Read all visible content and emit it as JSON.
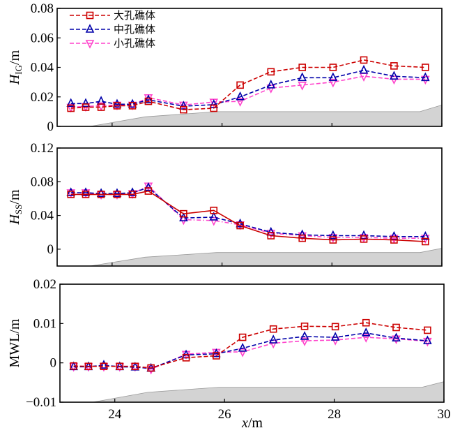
{
  "chart_data": {
    "type": "line",
    "xlabel": "x/m",
    "xlim": [
      23,
      30
    ],
    "xticks": [
      24,
      26,
      28,
      30
    ],
    "x": [
      23.25,
      23.52,
      23.8,
      24.09,
      24.37,
      24.66,
      25.3,
      25.85,
      26.33,
      26.89,
      27.46,
      28.02,
      28.58,
      29.13,
      29.7
    ],
    "legend": {
      "placement": "top-left",
      "entries": [
        "大孔礁体",
        "中孔礁体",
        "小孔礁体"
      ]
    },
    "panels": [
      {
        "id": "hig",
        "ylabel_main": "H",
        "ylabel_sub": "IG",
        "ylabel_unit": "/m",
        "ylim": [
          0,
          0.08
        ],
        "yticks": [
          0,
          0.02,
          0.04,
          0.06,
          0.08
        ],
        "ytick_labels": [
          "0",
          "0.02",
          "0.04",
          "0.06",
          "0.08"
        ],
        "show_legend": true,
        "terrain": [
          [
            23.6,
            0
          ],
          [
            24.6,
            0.0065
          ],
          [
            25.9,
            0.01
          ],
          [
            29.6,
            0.01
          ],
          [
            30,
            0.0145
          ]
        ],
        "series": [
          {
            "name": "大孔礁体",
            "color": "#cc0000",
            "marker": "square",
            "dash": "dashed",
            "values": [
              0.0123,
              0.013,
              0.013,
              0.014,
              0.014,
              0.017,
              0.0113,
              0.0123,
              0.028,
              0.037,
              0.04,
              0.04,
              0.045,
              0.041,
              0.04
            ]
          },
          {
            "name": "中孔礁体",
            "color": "#0000aa",
            "marker": "triangle-up",
            "dash": "dashed",
            "values": [
              0.0155,
              0.0155,
              0.017,
              0.015,
              0.015,
              0.018,
              0.0137,
              0.0147,
              0.02,
              0.028,
              0.033,
              0.033,
              0.038,
              0.034,
              0.033
            ]
          },
          {
            "name": "小孔礁体",
            "color": "#ff44cc",
            "marker": "triangle-down",
            "dash": "dashed",
            "values": [
              0.013,
              0.0135,
              0.014,
              0.0145,
              0.0145,
              0.0195,
              0.0145,
              0.0165,
              0.017,
              0.026,
              0.028,
              0.03,
              0.034,
              0.032,
              0.032
            ]
          }
        ]
      },
      {
        "id": "hss",
        "ylabel_main": "H",
        "ylabel_sub": "SS",
        "ylabel_unit": "/m",
        "ylim": [
          -0.02,
          0.12
        ],
        "yticks": [
          0,
          0.04,
          0.08,
          0.12
        ],
        "ytick_labels": [
          "0",
          "0.04",
          "0.08",
          "0.12"
        ],
        "show_legend": false,
        "terrain": [
          [
            23.6,
            -0.02
          ],
          [
            24.6,
            -0.0095
          ],
          [
            25.9,
            -0.004
          ],
          [
            29.6,
            -0.004
          ],
          [
            30,
            0.001
          ]
        ],
        "series": [
          {
            "name": "大孔礁体",
            "color": "#cc0000",
            "marker": "square",
            "dash": "solid",
            "values": [
              0.065,
              0.065,
              0.065,
              0.065,
              0.065,
              0.069,
              0.042,
              0.046,
              0.028,
              0.016,
              0.013,
              0.011,
              0.012,
              0.011,
              0.009
            ]
          },
          {
            "name": "中孔礁体",
            "color": "#0000aa",
            "marker": "triangle-up",
            "dash": "dashed",
            "values": [
              0.067,
              0.067,
              0.066,
              0.066,
              0.067,
              0.073,
              0.037,
              0.038,
              0.03,
              0.02,
              0.017,
              0.016,
              0.016,
              0.015,
              0.015
            ]
          },
          {
            "name": "小孔礁体",
            "color": "#ff44cc",
            "marker": "triangle-down",
            "dash": "dashdot",
            "values": [
              0.067,
              0.067,
              0.065,
              0.065,
              0.066,
              0.075,
              0.035,
              0.034,
              0.029,
              0.019,
              0.016,
              0.014,
              0.014,
              0.013,
              0.013
            ]
          }
        ]
      },
      {
        "id": "mwl",
        "ylabel_main": "MWL",
        "ylabel_sub": "",
        "ylabel_unit": "/m",
        "ylim": [
          -0.01,
          0.02
        ],
        "yticks": [
          -0.01,
          0,
          0.01,
          0.02
        ],
        "ytick_labels": [
          "−0.01",
          "0",
          "0.01",
          "0.02"
        ],
        "show_legend": false,
        "terrain": [
          [
            23.6,
            -0.01
          ],
          [
            24.6,
            -0.0075
          ],
          [
            25.9,
            -0.0062
          ],
          [
            29.6,
            -0.0062
          ],
          [
            30,
            -0.0048
          ]
        ],
        "series": [
          {
            "name": "大孔礁体",
            "color": "#cc0000",
            "marker": "square",
            "dash": "dashed",
            "values": [
              -0.0008,
              -0.0009,
              -0.0009,
              -0.0009,
              -0.0009,
              -0.0013,
              0.0013,
              0.0018,
              0.0065,
              0.0086,
              0.0093,
              0.0092,
              0.0102,
              0.009,
              0.0083
            ]
          },
          {
            "name": "中孔礁体",
            "color": "#0000aa",
            "marker": "triangle-up",
            "dash": "dashed",
            "values": [
              -0.001,
              -0.001,
              -0.0006,
              -0.001,
              -0.0011,
              -0.0014,
              0.002,
              0.0023,
              0.0037,
              0.0058,
              0.0067,
              0.0065,
              0.0076,
              0.0063,
              0.0056
            ]
          },
          {
            "name": "小孔礁体",
            "color": "#ff44cc",
            "marker": "triangle-down",
            "dash": "dashed",
            "values": [
              -0.0009,
              -0.0009,
              -0.0009,
              -0.0009,
              -0.0009,
              -0.0016,
              0.0022,
              0.0027,
              0.0028,
              0.005,
              0.0056,
              0.0058,
              0.0065,
              0.0061,
              0.0055
            ]
          }
        ]
      }
    ]
  }
}
